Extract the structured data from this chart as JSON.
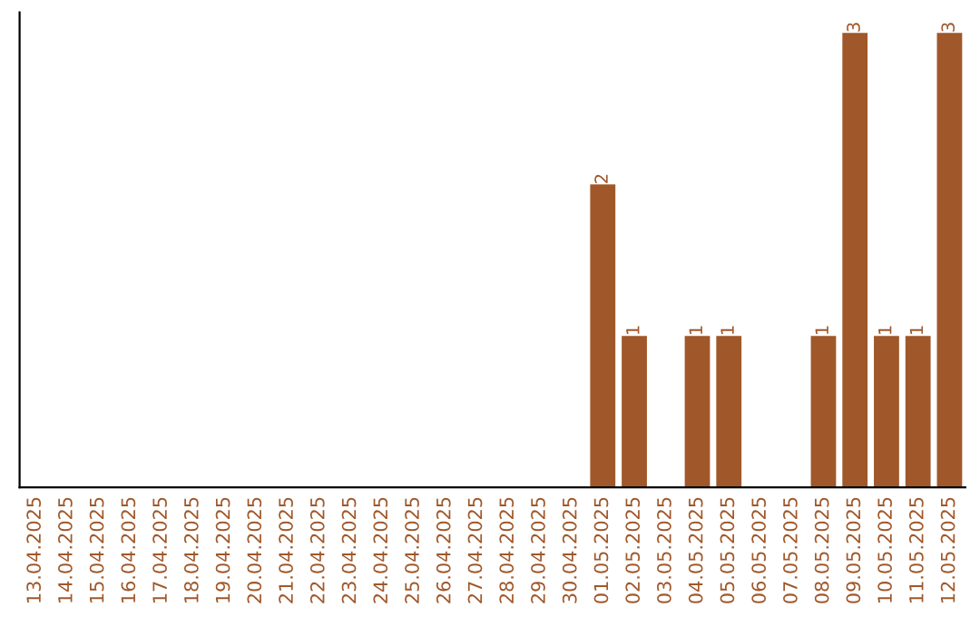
{
  "chart_data": {
    "type": "bar",
    "color": "#a0582a",
    "categories": [
      "13.04.2025",
      "14.04.2025",
      "15.04.2025",
      "16.04.2025",
      "17.04.2025",
      "18.04.2025",
      "19.04.2025",
      "20.04.2025",
      "21.04.2025",
      "22.04.2025",
      "23.04.2025",
      "24.04.2025",
      "25.04.2025",
      "26.04.2025",
      "27.04.2025",
      "28.04.2025",
      "29.04.2025",
      "30.04.2025",
      "01.05.2025",
      "02.05.2025",
      "03.05.2025",
      "04.05.2025",
      "05.05.2025",
      "06.05.2025",
      "07.05.2025",
      "08.05.2025",
      "09.05.2025",
      "10.05.2025",
      "11.05.2025",
      "12.05.2025"
    ],
    "values": [
      null,
      null,
      null,
      null,
      null,
      null,
      null,
      null,
      null,
      null,
      null,
      null,
      null,
      null,
      null,
      null,
      null,
      null,
      2,
      1,
      null,
      1,
      1,
      null,
      null,
      1,
      3,
      1,
      1,
      3
    ],
    "data_labels": true,
    "grid": false,
    "legend": false
  }
}
